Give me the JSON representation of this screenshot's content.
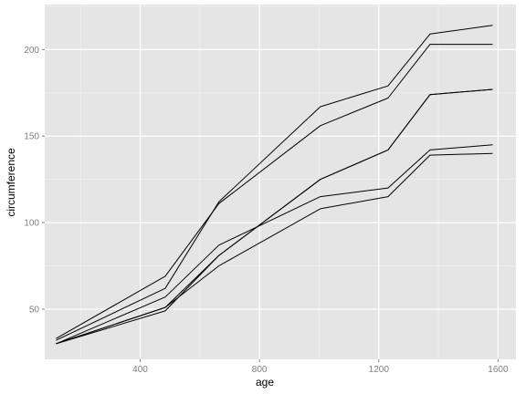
{
  "chart_data": {
    "type": "line",
    "title": "",
    "xlabel": "age",
    "ylabel": "circumference",
    "xlim": [
      80,
      1660
    ],
    "ylim": [
      21,
      226
    ],
    "x_ticks": [
      400,
      800,
      1200,
      1600
    ],
    "y_ticks": [
      50,
      100,
      150,
      200
    ],
    "x_minor": [
      200,
      600,
      1000,
      1400
    ],
    "y_minor": [
      75,
      125,
      175,
      225
    ],
    "grid": true,
    "legend": "none",
    "colors": {
      "panel_bg": "#e5e5e5",
      "grid_major": "#ffffff",
      "grid_minor": "#f2f2f2",
      "line": "#000000",
      "tick_label": "#7f7f7f"
    },
    "x": [
      118,
      484,
      664,
      1004,
      1231,
      1372,
      1582
    ],
    "series": [
      {
        "values": [
          30,
          51,
          75,
          108,
          115,
          139,
          140
        ]
      },
      {
        "values": [
          33,
          69,
          111,
          156,
          172,
          203,
          203
        ]
      },
      {
        "values": [
          30,
          51,
          81,
          125,
          142,
          174,
          177
        ]
      },
      {
        "values": [
          32,
          62,
          112,
          167,
          179,
          209,
          214
        ]
      },
      {
        "values": [
          30,
          49,
          81,
          125,
          142,
          174,
          177
        ]
      },
      {
        "values": [
          30,
          57,
          87,
          115,
          120,
          142,
          145
        ]
      }
    ]
  }
}
